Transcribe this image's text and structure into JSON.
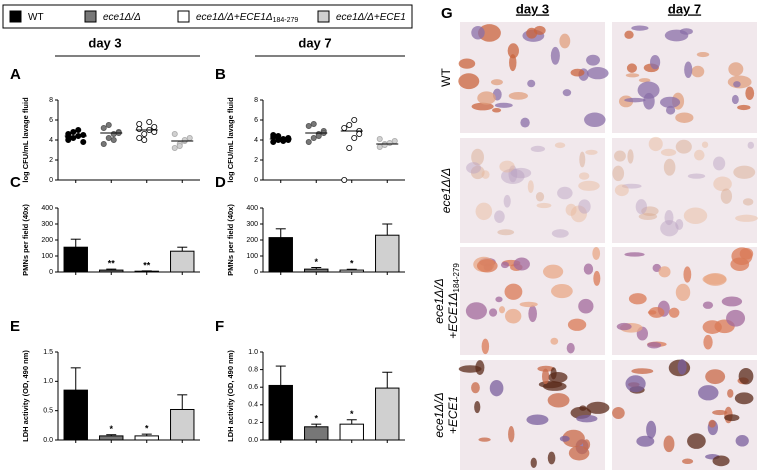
{
  "legend": [
    {
      "label": "WT",
      "color": "#000000"
    },
    {
      "label": "ece1Δ/Δ",
      "color": "#777777"
    },
    {
      "label": "ece1Δ/Δ+ECE1Δ",
      "sub": "184-279",
      "color": "#ffffff"
    },
    {
      "label": "ece1Δ/Δ+ECE1",
      "color": "#d0d0d0"
    }
  ],
  "day_headers": [
    "day 3",
    "day 7"
  ],
  "chart_data": [
    {
      "type": "scatter",
      "panel": "A",
      "ylabel": "log CFU/mL lavage fluid",
      "ylim": [
        0,
        8
      ],
      "yticks": [
        0,
        2,
        4,
        6,
        8
      ],
      "series": [
        {
          "values": [
            4.0,
            4.2,
            4.4,
            4.5,
            4.6,
            4.8,
            5.0,
            3.8,
            4.3
          ],
          "mean": 4.4
        },
        {
          "values": [
            3.6,
            4.2,
            4.6,
            4.8,
            5.2,
            5.5,
            4.0,
            4.7
          ],
          "mean": 4.7
        },
        {
          "values": [
            4.2,
            4.6,
            5.0,
            5.3,
            5.6,
            4.0,
            5.8,
            4.8,
            5.1
          ],
          "mean": 5.0
        },
        {
          "values": [
            3.2,
            3.6,
            3.9,
            4.2,
            4.6,
            3.4,
            4.0
          ],
          "mean": 3.9
        }
      ]
    },
    {
      "type": "scatter",
      "panel": "B",
      "ylabel": "log CFU/mL lavage fluid",
      "ylim": [
        0,
        8
      ],
      "yticks": [
        0,
        2,
        4,
        6,
        8
      ],
      "series": [
        {
          "values": [
            3.8,
            4.0,
            4.1,
            4.2,
            4.3,
            4.4,
            3.9,
            4.0,
            4.5
          ],
          "mean": 4.1
        },
        {
          "values": [
            3.8,
            4.2,
            4.6,
            4.9,
            5.4,
            5.6,
            4.4,
            4.7
          ],
          "mean": 4.7
        },
        {
          "values": [
            0,
            3.2,
            4.2,
            4.9,
            5.2,
            5.5,
            6.0,
            4.6
          ],
          "mean": 4.9
        },
        {
          "values": [
            3.3,
            3.6,
            3.7,
            3.9,
            4.1,
            3.5
          ],
          "mean": 3.6
        }
      ]
    },
    {
      "type": "bar",
      "panel": "C",
      "ylabel": "PMNs per field (40x)",
      "ylim": [
        0,
        400
      ],
      "yticks": [
        0,
        100,
        200,
        300,
        400
      ],
      "values": [
        155,
        12,
        5,
        130
      ],
      "errors": [
        50,
        6,
        2,
        25
      ],
      "annotations": [
        null,
        "**",
        "**",
        null
      ]
    },
    {
      "type": "bar",
      "panel": "D",
      "ylabel": "PMNs per field (40x)",
      "ylim": [
        0,
        400
      ],
      "yticks": [
        0,
        100,
        200,
        300,
        400
      ],
      "values": [
        215,
        18,
        12,
        230
      ],
      "errors": [
        55,
        10,
        5,
        70
      ],
      "annotations": [
        null,
        "*",
        "*",
        null
      ]
    },
    {
      "type": "bar",
      "panel": "E",
      "ylabel": "LDH activity (OD, 490 nm)",
      "ylim": [
        0,
        1.5
      ],
      "yticks": [
        {
          "value": 0,
          "label": "0.0"
        },
        {
          "value": 0.5,
          "label": "0.5"
        },
        {
          "value": 1,
          "label": "1.0"
        },
        {
          "value": 1.5,
          "label": "1.5"
        }
      ],
      "values": [
        0.85,
        0.07,
        0.07,
        0.52
      ],
      "errors": [
        0.38,
        0.02,
        0.03,
        0.25
      ],
      "annotations": [
        null,
        "*",
        "*",
        null
      ]
    },
    {
      "type": "bar",
      "panel": "F",
      "ylabel": "LDH activity (OD, 490 nm)",
      "ylim": [
        0,
        1
      ],
      "yticks": [
        {
          "value": 0,
          "label": "0.0"
        },
        {
          "value": 0.2,
          "label": "0.2"
        },
        {
          "value": 0.4,
          "label": "0.4"
        },
        {
          "value": 0.6,
          "label": "0.6"
        },
        {
          "value": 0.8,
          "label": "0.8"
        },
        {
          "value": 1,
          "label": "1.0"
        }
      ],
      "values": [
        0.62,
        0.15,
        0.18,
        0.59
      ],
      "errors": [
        0.22,
        0.03,
        0.05,
        0.18
      ],
      "annotations": [
        null,
        "*",
        "*",
        null
      ]
    }
  ],
  "panel_g": {
    "label": "G",
    "columns": [
      "day 3",
      "day 7"
    ],
    "rows": [
      {
        "lines": [
          "WT"
        ]
      },
      {
        "lines": [
          "ece1Δ/Δ"
        ]
      },
      {
        "lines": [
          "ece1Δ/Δ",
          "+ECE1Δ"
        ],
        "sub": "184-279"
      },
      {
        "lines": [
          "ece1Δ/Δ",
          "+ECE1"
        ]
      }
    ]
  }
}
